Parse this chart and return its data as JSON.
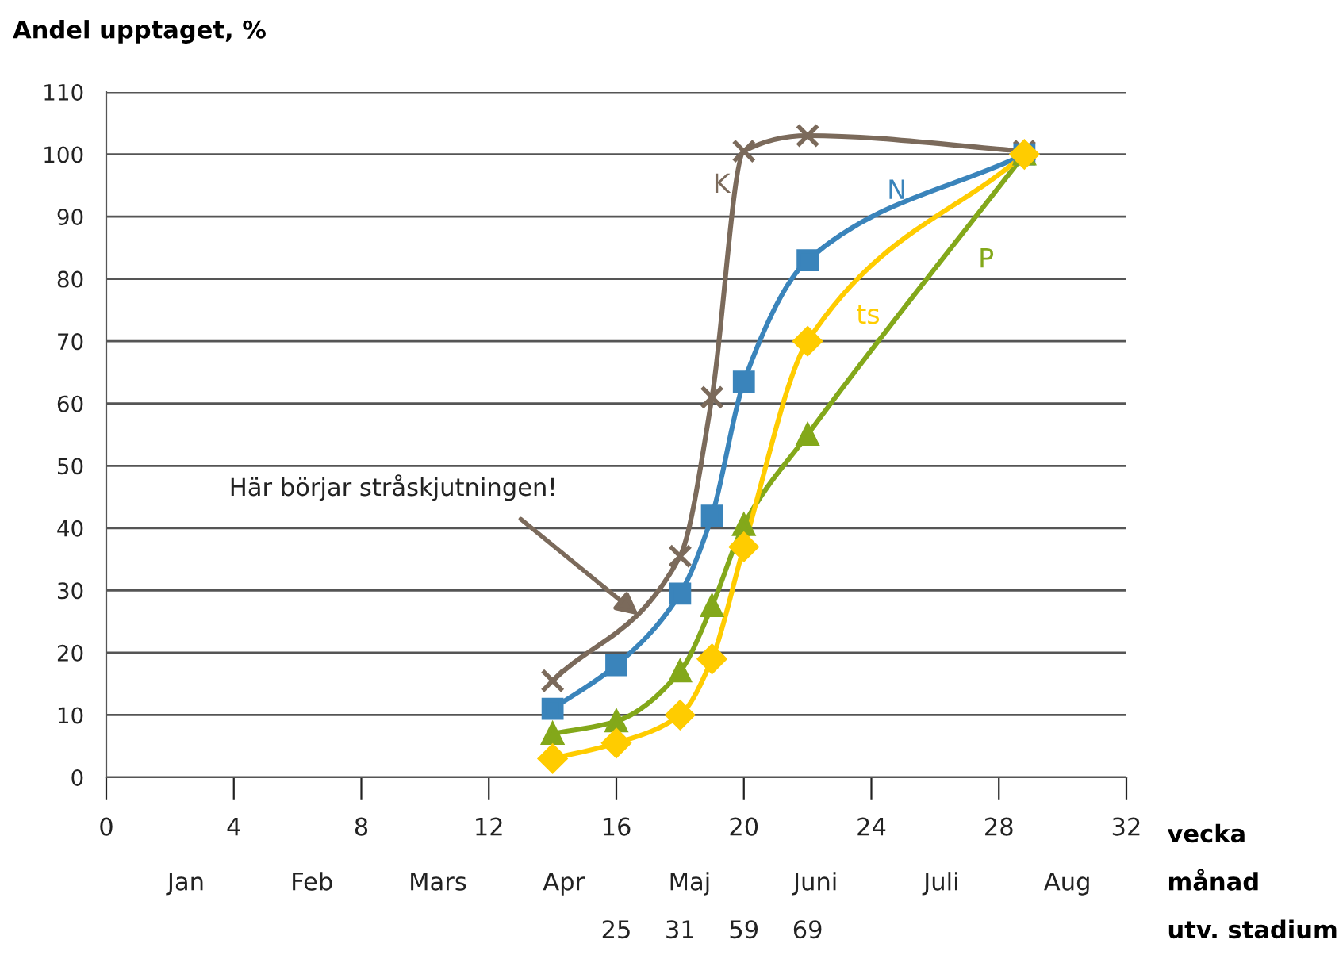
{
  "chart_data": {
    "type": "line",
    "ylabel": "Andel upptaget, %",
    "xlabel": "vecka",
    "xlim": [
      0,
      32
    ],
    "xticks": [
      0,
      4,
      8,
      12,
      16,
      20,
      24,
      28,
      32
    ],
    "ylim": [
      0,
      110
    ],
    "yticks": [
      0,
      10,
      20,
      30,
      40,
      50,
      60,
      70,
      80,
      90,
      100,
      110
    ],
    "grid": "y",
    "line_style": "solid",
    "series": [
      {
        "name": "K",
        "color": "#7b6a5b",
        "marker": "cross",
        "x": [
          14,
          18,
          19,
          20,
          22,
          28.8
        ],
        "values": [
          15.5,
          35.5,
          61,
          100.5,
          103,
          100.5
        ]
      },
      {
        "name": "N",
        "color": "#3a84bb",
        "marker": "square",
        "x": [
          14,
          16,
          18,
          19,
          20,
          22,
          28.8
        ],
        "values": [
          11,
          18,
          29.5,
          42,
          63.5,
          83,
          100
        ]
      },
      {
        "name": "P",
        "color": "#83a81a",
        "marker": "triangle",
        "x": [
          14,
          16,
          18,
          19,
          20,
          22,
          28.8
        ],
        "values": [
          7,
          9,
          17,
          27.5,
          40.5,
          55,
          100
        ]
      },
      {
        "name": "ts",
        "color": "#ffcc00",
        "marker": "diamond",
        "x": [
          14,
          16,
          18,
          19,
          20,
          22,
          28.8
        ],
        "values": [
          3,
          5.5,
          10,
          19,
          37,
          70,
          100
        ]
      }
    ],
    "annotations": [
      {
        "text": "Här börjar stråskjutningen!",
        "x": 16.7,
        "y": 26
      },
      "månad",
      "Jan",
      "Feb",
      "Mars",
      "Apr",
      "Maj",
      "Juni",
      "Juli",
      "Aug",
      "utv. stadium",
      "25",
      "31",
      "59",
      "69"
    ]
  }
}
